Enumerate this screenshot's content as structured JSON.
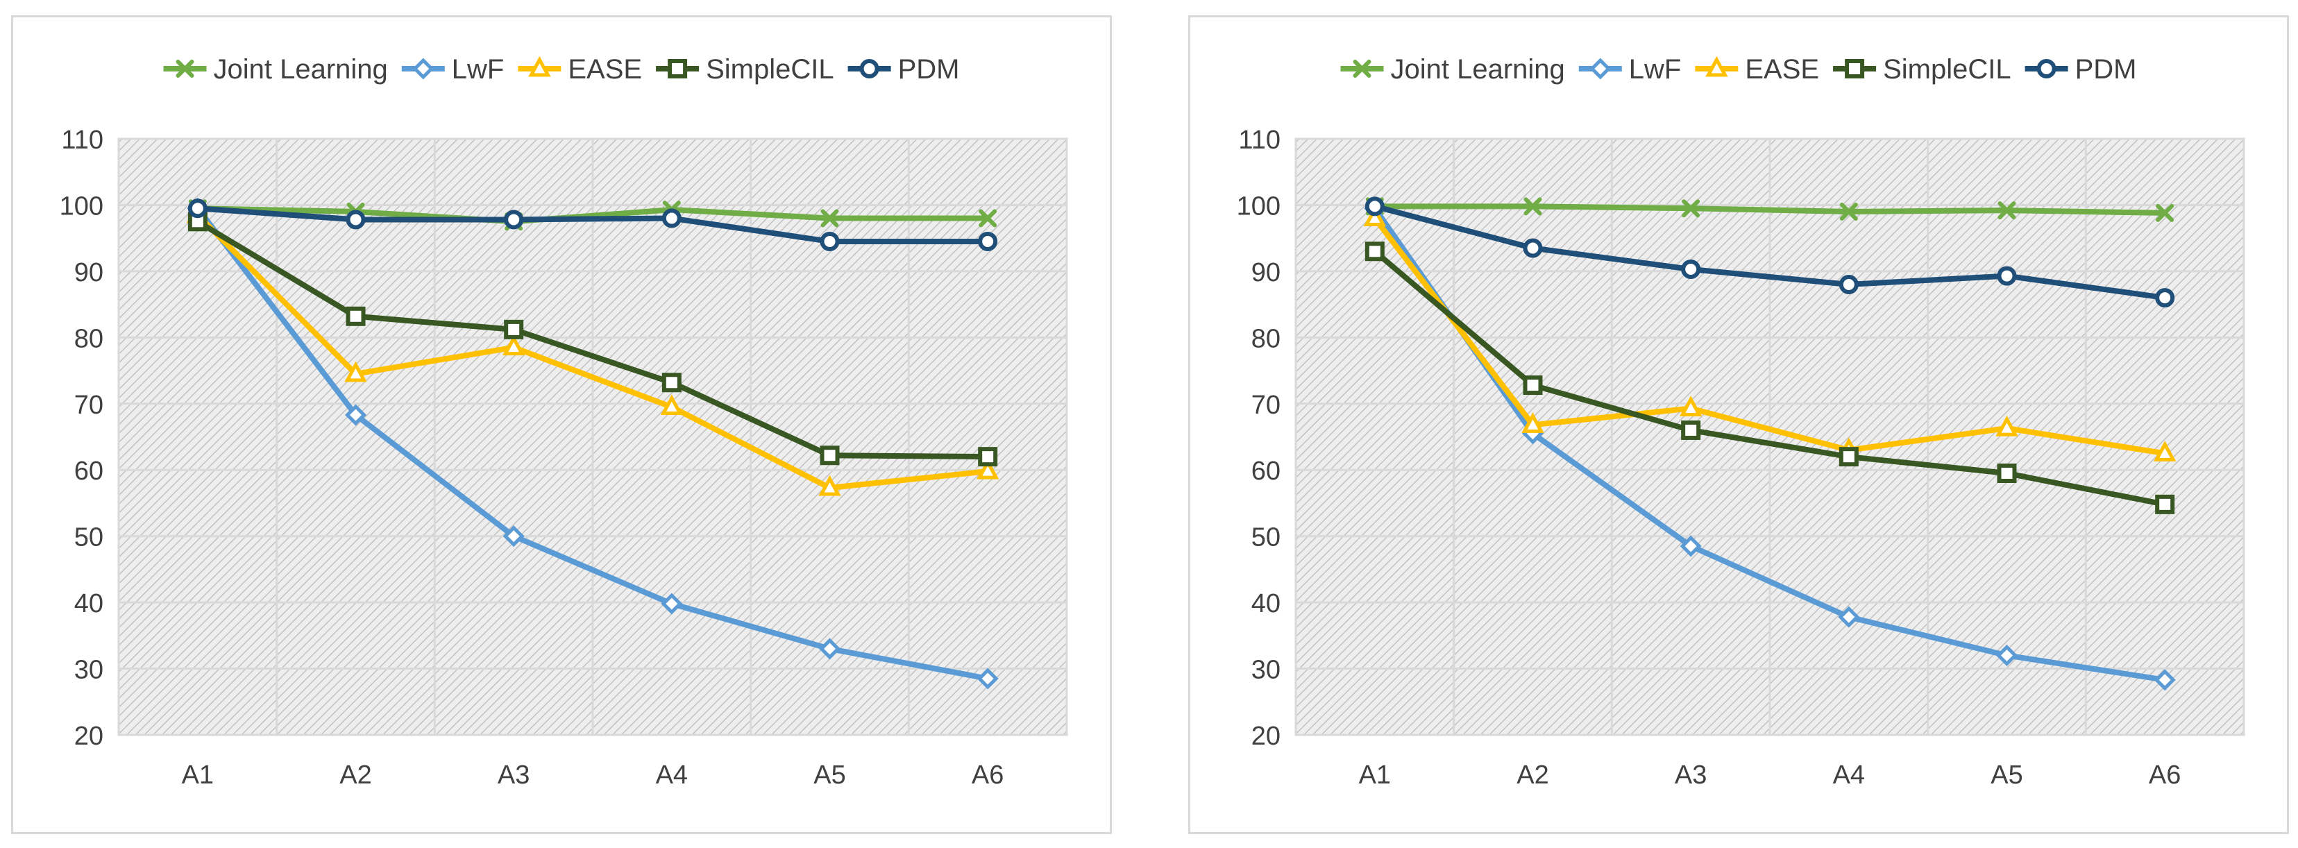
{
  "chart_data": [
    {
      "type": "line",
      "categories": [
        "A1",
        "A2",
        "A3",
        "A4",
        "A5",
        "A6"
      ],
      "ylim": [
        20,
        110
      ],
      "yticks": [
        20,
        30,
        40,
        50,
        60,
        70,
        80,
        90,
        100,
        110
      ],
      "grid": true,
      "legend_position": "top",
      "series": [
        {
          "name": "Joint Learning",
          "values": [
            99.5,
            99.0,
            97.5,
            99.3,
            98.0,
            98.0
          ],
          "color": "#70ad47",
          "marker": "x"
        },
        {
          "name": "LwF",
          "values": [
            99.5,
            68.3,
            50.0,
            39.8,
            33.0,
            28.5
          ],
          "color": "#5b9bd5",
          "marker": "diamond"
        },
        {
          "name": "EASE",
          "values": [
            98.5,
            74.5,
            78.5,
            69.5,
            57.3,
            59.8
          ],
          "color": "#ffc000",
          "marker": "triangle"
        },
        {
          "name": "SimpleCIL",
          "values": [
            97.5,
            83.2,
            81.2,
            73.2,
            62.2,
            62.0
          ],
          "color": "#385723",
          "marker": "square"
        },
        {
          "name": "PDM",
          "values": [
            99.5,
            97.8,
            97.8,
            98.0,
            94.5,
            94.5
          ],
          "color": "#1f4e79",
          "marker": "circle"
        }
      ]
    },
    {
      "type": "line",
      "categories": [
        "A1",
        "A2",
        "A3",
        "A4",
        "A5",
        "A6"
      ],
      "ylim": [
        20,
        110
      ],
      "yticks": [
        20,
        30,
        40,
        50,
        60,
        70,
        80,
        90,
        100,
        110
      ],
      "grid": true,
      "legend_position": "top",
      "series": [
        {
          "name": "Joint Learning",
          "values": [
            99.8,
            99.8,
            99.5,
            99.0,
            99.2,
            98.8
          ],
          "color": "#70ad47",
          "marker": "x"
        },
        {
          "name": "LwF",
          "values": [
            99.5,
            65.5,
            48.5,
            37.8,
            32.0,
            28.3
          ],
          "color": "#5b9bd5",
          "marker": "diamond"
        },
        {
          "name": "EASE",
          "values": [
            98.0,
            66.8,
            69.3,
            63.0,
            66.3,
            62.5
          ],
          "color": "#ffc000",
          "marker": "triangle"
        },
        {
          "name": "SimpleCIL",
          "values": [
            93.0,
            72.8,
            66.0,
            62.0,
            59.5,
            54.8
          ],
          "color": "#385723",
          "marker": "square"
        },
        {
          "name": "PDM",
          "values": [
            99.8,
            93.5,
            90.3,
            88.0,
            89.3,
            86.0
          ],
          "color": "#1f4e79",
          "marker": "circle"
        }
      ]
    }
  ]
}
